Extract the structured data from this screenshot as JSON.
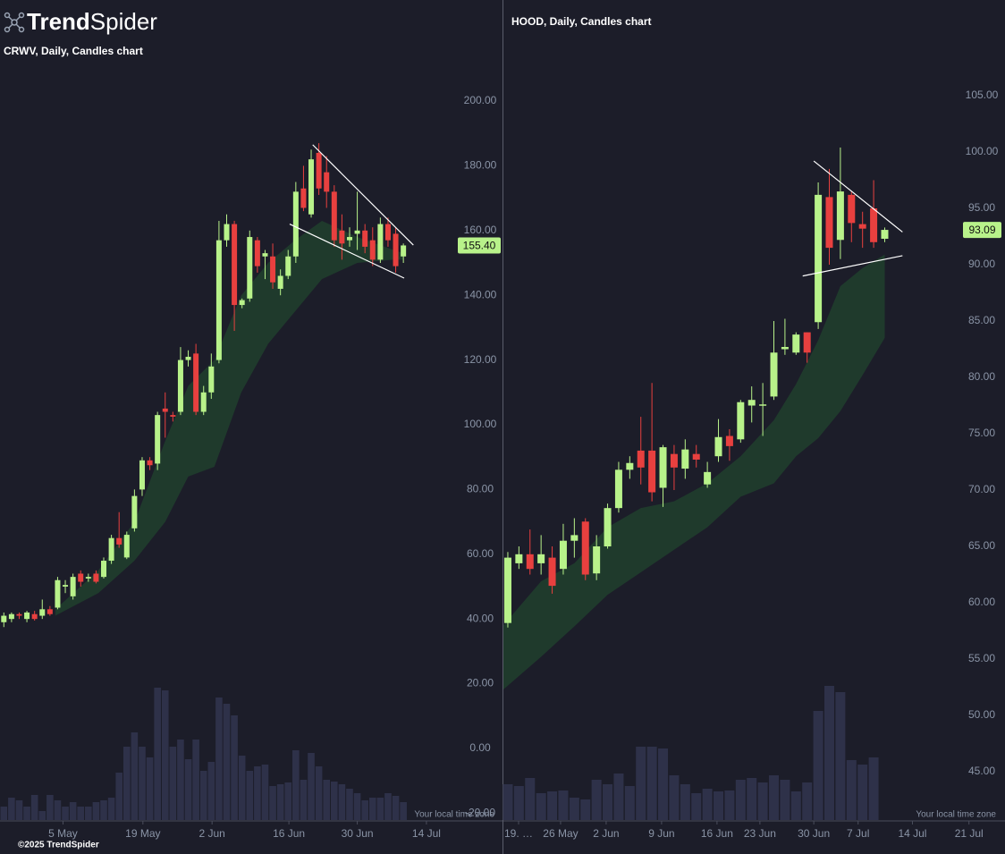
{
  "header": {
    "logo_strong": "Trend",
    "logo_light": "Spider"
  },
  "footer": "©2025 TrendSpider",
  "chart_data": [
    {
      "type": "candlestick",
      "title": "CRWV, Daily, Candles chart",
      "up_color": "#b8f28a",
      "down_color": "#e8403f",
      "cloud_color": "#1f3a2c",
      "volume_color": "#2e3149",
      "trendline_color": "#ffffff",
      "open": [
        39,
        40,
        41.5,
        40,
        41.5,
        41,
        43,
        43.5,
        50,
        47,
        54,
        52.5,
        54,
        53,
        58,
        65,
        59,
        68,
        80,
        89,
        88,
        105,
        103,
        104,
        120,
        122,
        104,
        110,
        120,
        157,
        162,
        137,
        139,
        157,
        152,
        152,
        142,
        146,
        152,
        173,
        165,
        184,
        178,
        172,
        160,
        157,
        159,
        160,
        157,
        151,
        162,
        159,
        152
      ],
      "high": [
        42,
        42,
        42,
        42.5,
        42.5,
        46,
        44,
        53,
        52,
        54,
        55,
        54,
        55,
        59,
        66,
        73,
        67,
        80,
        90,
        90,
        104,
        110,
        104,
        124,
        123,
        125,
        112,
        122,
        163,
        165,
        163,
        139,
        160,
        158,
        154,
        156,
        148,
        154,
        175,
        180,
        185,
        187,
        183,
        174,
        165,
        161,
        172,
        162,
        161,
        164,
        164,
        161,
        156
      ],
      "low": [
        37.5,
        39,
        40,
        39,
        39.5,
        40,
        41,
        43,
        48,
        46,
        50,
        51.5,
        51,
        52.5,
        57,
        62,
        58.5,
        67,
        78,
        86,
        86,
        96,
        101,
        103,
        118,
        103,
        103,
        108,
        119,
        155,
        129,
        136,
        138,
        147,
        145,
        142,
        140,
        145,
        150,
        166,
        164,
        171,
        167,
        155,
        151,
        155,
        154,
        153,
        149,
        150,
        155,
        147,
        150
      ],
      "close": [
        41,
        41.5,
        41,
        42,
        40,
        43,
        41.5,
        52,
        50.5,
        53,
        51.5,
        53,
        51.5,
        58,
        65,
        63,
        66,
        78,
        89,
        87.5,
        103,
        104,
        102.5,
        120,
        121,
        104,
        110,
        118,
        157,
        162,
        137,
        138.5,
        158,
        149,
        153,
        144,
        146,
        152,
        172,
        167,
        182,
        173,
        172,
        157,
        156,
        158,
        160,
        155,
        151,
        162,
        157,
        149,
        155.4
      ],
      "volume": [
        15,
        25,
        22,
        15,
        28,
        10,
        28,
        22,
        15,
        20,
        15,
        15,
        20,
        22,
        25,
        53,
        82,
        98,
        82,
        70,
        148,
        145,
        82,
        90,
        68,
        90,
        55,
        65,
        137,
        130,
        117,
        72,
        55,
        60,
        62,
        38,
        40,
        42,
        78,
        45,
        75,
        60,
        45,
        43,
        40,
        35,
        30,
        22,
        25,
        25,
        30,
        27,
        20
      ],
      "vlim": [
        0,
        160
      ],
      "cloud": {
        "x": [
          6.7,
          12.3,
          17,
          21,
          24,
          27.4,
          30.9,
          34.4,
          37.9,
          41.4,
          46,
          50.7,
          52
        ],
        "upper": [
          43,
          55,
          70,
          95,
          112,
          120,
          140,
          150,
          157,
          163,
          158,
          154,
          153
        ],
        "lower": [
          41,
          48,
          58,
          70,
          84,
          87,
          110,
          125,
          135,
          145,
          150,
          151,
          151
        ]
      },
      "trendlines": [
        {
          "x": [
            40.2,
            53.3
          ],
          "y": [
            186.5,
            155.5
          ]
        },
        {
          "x": [
            37.2,
            52.1
          ],
          "y": [
            162,
            145.3
          ]
        }
      ],
      "last_price": {
        "value": 155.4,
        "label": "155.40"
      },
      "xlim": [
        -0.5,
        64.9
      ],
      "ylim": [
        -22,
        216
      ],
      "yticks": [
        {
          "value": 200,
          "label": "200.00"
        },
        {
          "value": 180,
          "label": "180.00"
        },
        {
          "value": 160,
          "label": "160.00"
        },
        {
          "value": 140,
          "label": "140.00"
        },
        {
          "value": 120,
          "label": "120.00"
        },
        {
          "value": 100,
          "label": "100.00"
        },
        {
          "value": 80,
          "label": "80.00"
        },
        {
          "value": 60,
          "label": "60.00"
        },
        {
          "value": 40,
          "label": "40.00"
        },
        {
          "value": 20,
          "label": "20.00"
        },
        {
          "value": 0,
          "label": "0.00"
        },
        {
          "value": -20,
          "label": "-20.00"
        }
      ],
      "xticks": [
        {
          "value": 7.7,
          "label": "5 May"
        },
        {
          "value": 18.1,
          "label": "19 May"
        },
        {
          "value": 27.1,
          "label": "2 Jun"
        },
        {
          "value": 37.1,
          "label": "16 Jun"
        },
        {
          "value": 46,
          "label": "30 Jun"
        },
        {
          "value": 55,
          "label": "14 Jul"
        }
      ],
      "timezone_note": "Your local time zone"
    },
    {
      "type": "candlestick",
      "title": "HOOD, Daily, Candles chart",
      "up_color": "#b8f28a",
      "down_color": "#e8403f",
      "cloud_color": "#1f3a2c",
      "volume_color": "#2e3149",
      "trendline_color": "#ffffff",
      "open": [
        58.2,
        63.5,
        64.3,
        63.5,
        64,
        63,
        65.5,
        67.2,
        62.6,
        65,
        68.4,
        71.8,
        73.5,
        73.5,
        70.2,
        73.2,
        71.9,
        73.2,
        70.5,
        73,
        74.8,
        74.5,
        77.5,
        77.5,
        78.3,
        82.5,
        82.2,
        84,
        84.9,
        96,
        92.2,
        96.2,
        93.6,
        95,
        92.3
      ],
      "high": [
        64.5,
        65,
        66.5,
        66,
        65,
        67,
        67.5,
        67.5,
        66,
        68.8,
        72.5,
        73,
        76.5,
        79.5,
        74,
        74,
        74.5,
        74,
        72.5,
        76.3,
        75.4,
        78,
        79.2,
        79.5,
        85,
        85.2,
        84,
        84,
        97.3,
        98.5,
        100.4,
        96.5,
        94.7,
        97.5,
        93.3
      ],
      "low": [
        57.8,
        63,
        62.5,
        62.5,
        60.8,
        62.5,
        64,
        62,
        62,
        64.8,
        68,
        71,
        70.5,
        69,
        68.5,
        70,
        71,
        72,
        70.2,
        72.5,
        72.6,
        74.2,
        76,
        74.8,
        78,
        82,
        82,
        81.3,
        84.3,
        90,
        90.5,
        92,
        91.5,
        91.5,
        92
      ],
      "close": [
        64,
        64.3,
        63,
        64.3,
        61.5,
        65.5,
        66,
        62.5,
        65,
        68.4,
        71.8,
        72.4,
        72,
        69.8,
        73.8,
        72,
        73.6,
        72.7,
        71.6,
        74.7,
        73.9,
        77.8,
        78,
        77.6,
        82.2,
        82.7,
        83.8,
        82.2,
        96.2,
        91.5,
        96.5,
        93.7,
        93.2,
        92,
        93.09
      ],
      "volume": [
        40,
        38,
        47,
        30,
        32,
        33,
        25,
        23,
        45,
        40,
        52,
        38,
        82,
        82,
        80,
        50,
        40,
        30,
        35,
        32,
        33,
        45,
        47,
        42,
        50,
        45,
        32,
        42,
        122,
        150,
        143,
        67,
        62,
        70,
        null
      ],
      "vlim": [
        0,
        160
      ],
      "cloud": {
        "x": [
          -0.4,
          3,
          6,
          9,
          12,
          15,
          18,
          21,
          24,
          26,
          28,
          30,
          32,
          34
        ],
        "upper": [
          58,
          61.9,
          63.5,
          66.7,
          68.4,
          69,
          70.6,
          73,
          76.2,
          79.4,
          83.3,
          88.1,
          89.7,
          90.9
        ],
        "lower": [
          52.3,
          55.2,
          57.9,
          60.7,
          62.7,
          64.7,
          66.7,
          69.4,
          70.6,
          73,
          74.6,
          77,
          80.2,
          83.5
        ]
      },
      "trendlines": [
        {
          "x": [
            27.6,
            35.6
          ],
          "y": [
            99.2,
            92.9
          ]
        },
        {
          "x": [
            26.6,
            35.6
          ],
          "y": [
            89,
            90.8
          ]
        }
      ],
      "last_price": {
        "value": 93.09,
        "label": "93.09"
      },
      "xlim": [
        -0.4,
        44.85
      ],
      "ylim": [
        43,
        109
      ],
      "yticks": [
        {
          "value": 105,
          "label": "105.00"
        },
        {
          "value": 100,
          "label": "100.00"
        },
        {
          "value": 95,
          "label": "95.00"
        },
        {
          "value": 90,
          "label": "90.00"
        },
        {
          "value": 85,
          "label": "85.00"
        },
        {
          "value": 80,
          "label": "80.00"
        },
        {
          "value": 75,
          "label": "75.00"
        },
        {
          "value": 70,
          "label": "70.00"
        },
        {
          "value": 65,
          "label": "65.00"
        },
        {
          "value": 60,
          "label": "60.00"
        },
        {
          "value": 55,
          "label": "55.00"
        },
        {
          "value": 50,
          "label": "50.00"
        },
        {
          "value": 45,
          "label": "45.00"
        }
      ],
      "xticks": [
        {
          "value": 0.97,
          "label": "19. …"
        },
        {
          "value": 4.76,
          "label": "26 May"
        },
        {
          "value": 8.87,
          "label": "2 Jun"
        },
        {
          "value": 13.87,
          "label": "9 Jun"
        },
        {
          "value": 18.87,
          "label": "16 Jun"
        },
        {
          "value": 22.74,
          "label": "23 Jun"
        },
        {
          "value": 27.6,
          "label": "30 Jun"
        },
        {
          "value": 31.6,
          "label": "7 Jul"
        },
        {
          "value": 36.5,
          "label": "14 Jul"
        },
        {
          "value": 41.6,
          "label": "21 Jul"
        }
      ],
      "timezone_note": "Your local time zone"
    }
  ]
}
